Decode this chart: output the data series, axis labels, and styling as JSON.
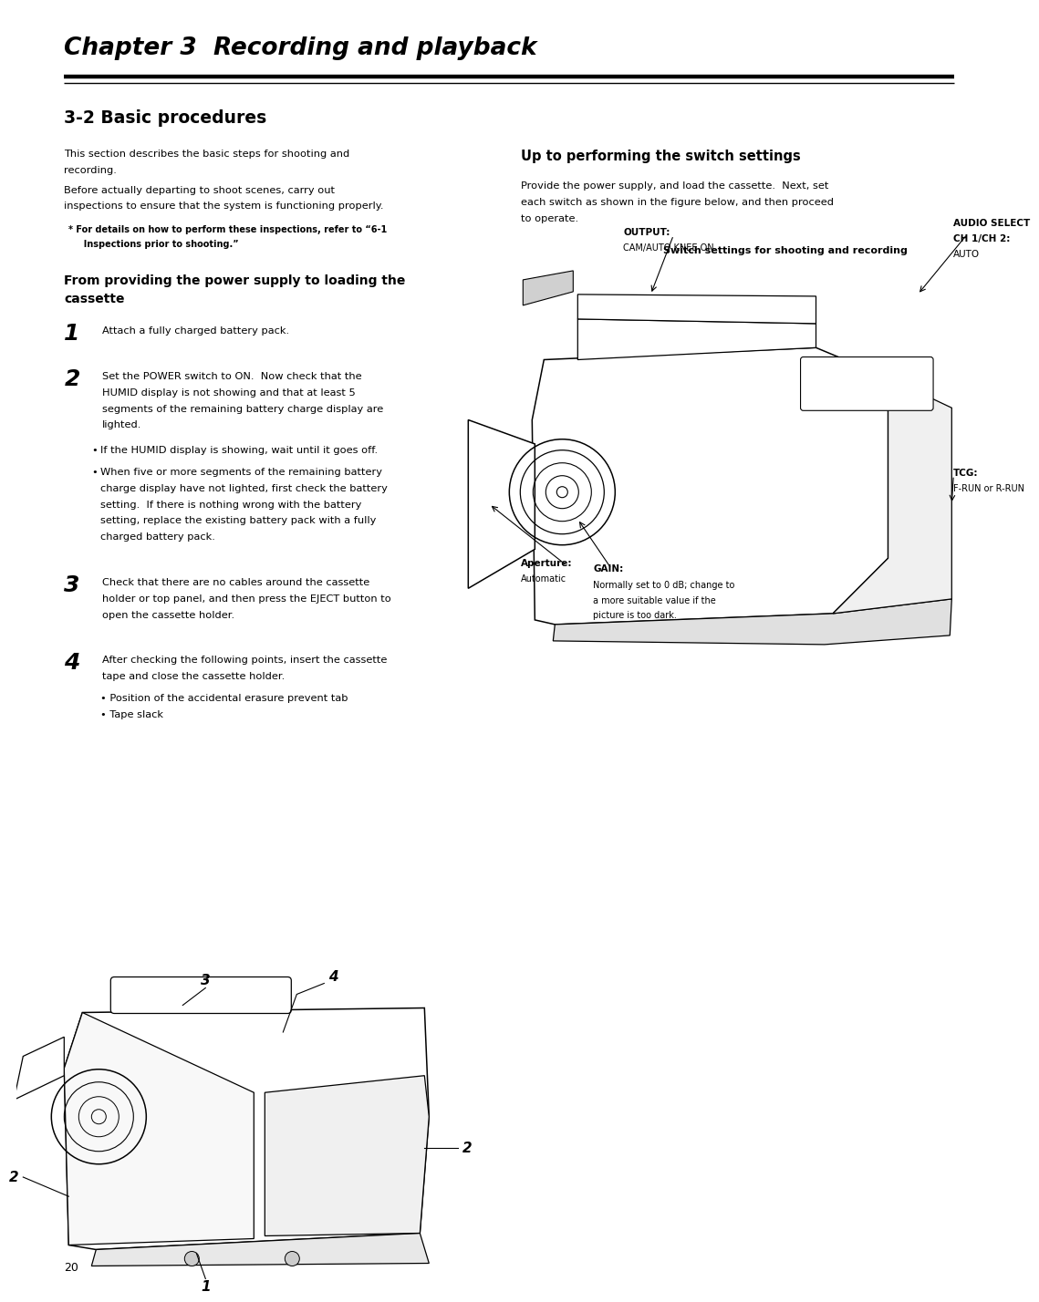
{
  "page_width": 10.8,
  "page_height": 13.99,
  "bg_color": "#ffffff",
  "chapter_title": "Chapter 3  Recording and playback",
  "section_title": "3-2 Basic procedures",
  "intro1a": "This section describes the basic steps for shooting and",
  "intro1b": "recording.",
  "intro2a": "Before actually departing to shoot scenes, carry out",
  "intro2b": "inspections to ensure that the system is functioning properly.",
  "note_line1": "* For details on how to perform these inspections, refer to “6-1",
  "note_line2": "  Inspections prior to shooting.”",
  "subsect_a": "From providing the power supply to loading the",
  "subsect_b": "cassette",
  "step1": "Attach a fully charged battery pack.",
  "step2_lines": [
    "Set the POWER switch to ON.  Now check that the",
    "HUMID display is not showing and that at least 5",
    "segments of the remaining battery charge display are",
    "lighted."
  ],
  "b1": "If the HUMID display is showing, wait until it goes off.",
  "b2_lines": [
    "When five or more segments of the remaining battery",
    "charge display have not lighted, first check the battery",
    "setting.  If there is nothing wrong with the battery",
    "setting, replace the existing battery pack with a fully",
    "charged battery pack."
  ],
  "step3_lines": [
    "Check that there are no cables around the cassette",
    "holder or top panel, and then press the EJECT button to",
    "open the cassette holder."
  ],
  "step4_lines": [
    "After checking the following points, insert the cassette",
    "tape and close the cassette holder."
  ],
  "step4_b1": "Position of the accidental erasure prevent tab",
  "step4_b2": "Tape slack",
  "right_heading": "Up to performing the switch settings",
  "right_intro_lines": [
    "Provide the power supply, and load the cassette.  Next, set",
    "each switch as shown in the figure below, and then proceed",
    "to operate."
  ],
  "diagram_title": "Switch settings for shooting and recording",
  "lbl_output": "OUTPUT:",
  "lbl_output_val": "CAM/AUTO KNEE ON",
  "lbl_audio1": "AUDIO SELECT",
  "lbl_audio2": "CH 1/CH 2:",
  "lbl_audio3": "AUTO",
  "lbl_gain": "GAIN:",
  "lbl_gain_lines": [
    "Normally set to 0 dB; change to",
    "a more suitable value if the",
    "picture is too dark."
  ],
  "lbl_aperture": "Aperture:",
  "lbl_aperture_val": "Automatic",
  "lbl_tcg": "TCG:",
  "lbl_tcg_val": "F-RUN or R-RUN",
  "page_num": "20"
}
